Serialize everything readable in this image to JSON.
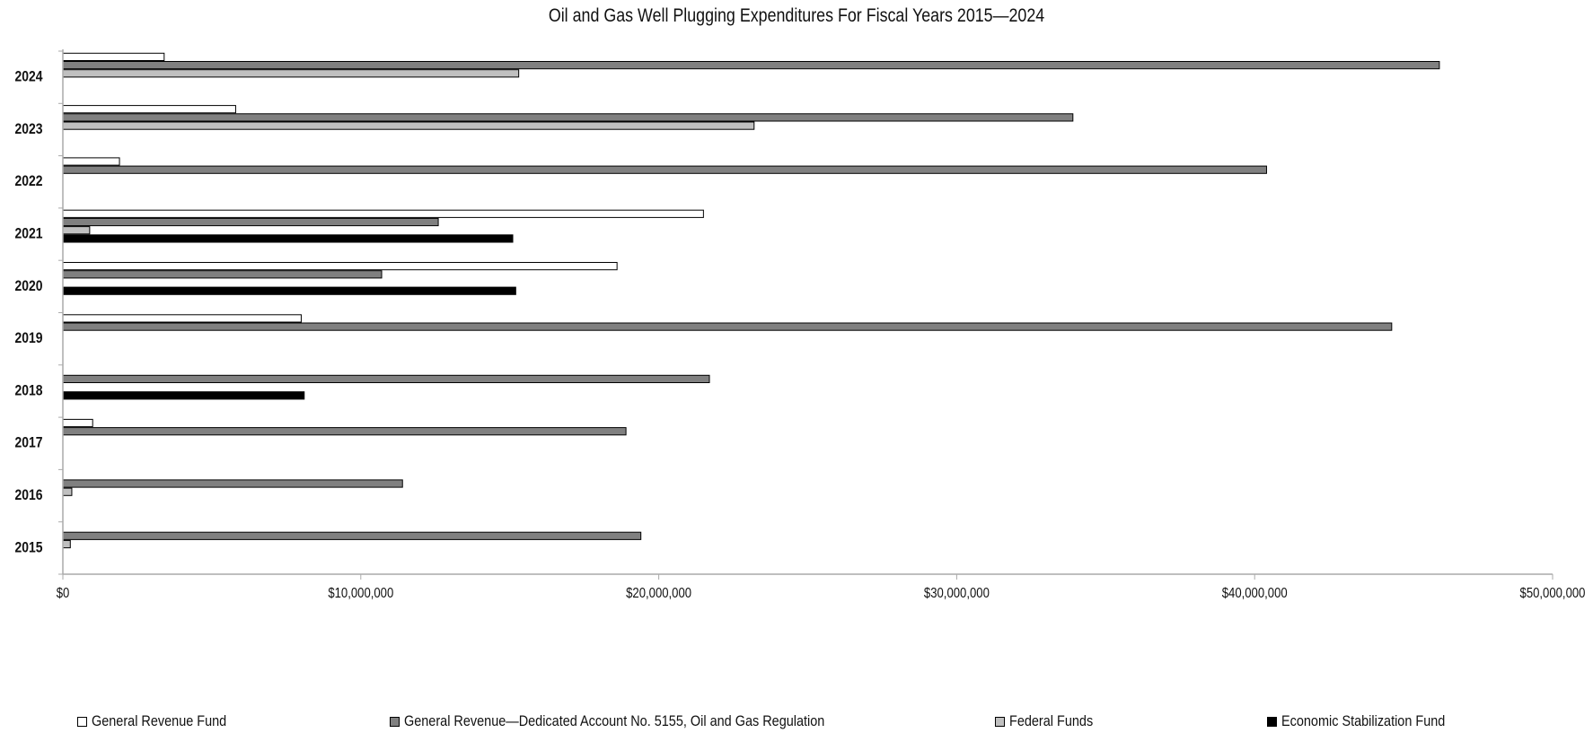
{
  "chart_data": {
    "type": "bar",
    "orientation": "horizontal",
    "title": "Oil and Gas Well Plugging Expenditures For Fiscal Years 2015—2024",
    "categories": [
      "2024",
      "2023",
      "2022",
      "2021",
      "2020",
      "2019",
      "2018",
      "2017",
      "2016",
      "2015"
    ],
    "series": [
      {
        "name": "General Revenue Fund",
        "color": "#ffffff",
        "values": [
          3400000,
          5800000,
          1900000,
          21500000,
          18600000,
          8000000,
          0,
          1000000,
          0,
          0
        ]
      },
      {
        "name": "General Revenue—Dedicated Account No. 5155, Oil and Gas Regulation",
        "color": "#808080",
        "values": [
          46200000,
          33900000,
          40400000,
          12600000,
          10700000,
          44600000,
          21700000,
          18900000,
          11400000,
          19400000
        ]
      },
      {
        "name": "Federal Funds",
        "color": "#c0c0c0",
        "values": [
          15300000,
          23200000,
          0,
          900000,
          0,
          0,
          0,
          0,
          300000,
          250000
        ]
      },
      {
        "name": "Economic Stabilization Fund",
        "color": "#000000",
        "values": [
          0,
          0,
          0,
          15100000,
          15200000,
          0,
          8100000,
          0,
          0,
          0
        ]
      }
    ],
    "xlim": [
      0,
      50000000
    ],
    "x_ticks": [
      0,
      10000000,
      20000000,
      30000000,
      40000000,
      50000000
    ],
    "x_tick_labels": [
      "$0",
      "$10,000,000",
      "$20,000,000",
      "$30,000,000",
      "$40,000,000",
      "$50,000,000"
    ],
    "grid": false,
    "legend_position": "bottom"
  }
}
